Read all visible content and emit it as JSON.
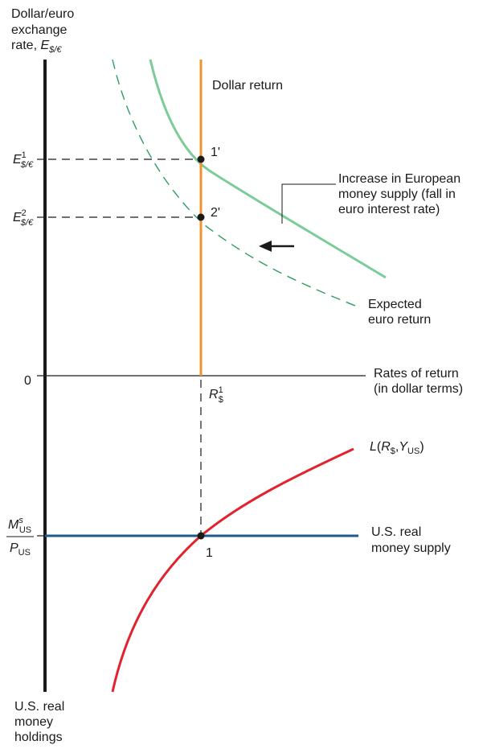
{
  "labels": {
    "yaxis_line1": "Dollar/euro",
    "yaxis_line2": "exchange",
    "yaxis_line3_prefix": "rate, ",
    "yaxis_E": "E",
    "yaxis_sub": "$/€",
    "e1_E": "E",
    "e1_sup": "1",
    "e1_sub": "$/€",
    "e2_E": "E",
    "e2_sup": "2",
    "e2_sub": "$/€",
    "zero": "0",
    "dollar_return": "Dollar return",
    "point_1p": "1'",
    "point_2p": "2'",
    "annotation_line1": "Increase in European",
    "annotation_line2": "money supply (fall in",
    "annotation_line3": "euro interest rate)",
    "expected_line1": "Expected",
    "expected_line2": "euro return",
    "rates_line1": "Rates of return",
    "rates_line2": "(in dollar terms)",
    "r_R": "R",
    "r_sup": "1",
    "r_sub": "$",
    "money_demand_L": "L",
    "money_demand_open": "(",
    "money_demand_R": "R",
    "money_demand_R_sub": "$",
    "money_demand_comma": ",",
    "money_demand_Y": "Y",
    "money_demand_Y_sub": "US",
    "money_demand_close": ")",
    "ms_M": "M",
    "ms_sup": "s",
    "ms_sub": "US",
    "ps_P": "P",
    "ps_sub": "US",
    "us_supply_line1": "U.S. real",
    "us_supply_line2": "money supply",
    "point_1": "1",
    "holdings_line1": "U.S. real",
    "holdings_line2": "money",
    "holdings_line3": "holdings"
  },
  "colors": {
    "axis": "#1a1a1a",
    "dollar_return": "#f0922e",
    "expected_return_initial": "#7ccc98",
    "expected_return_shifted": "#2e9e5e",
    "money_demand": "#e2232e",
    "money_supply": "#1f5a8c",
    "dashed_guide": "#1a1a1a"
  }
}
